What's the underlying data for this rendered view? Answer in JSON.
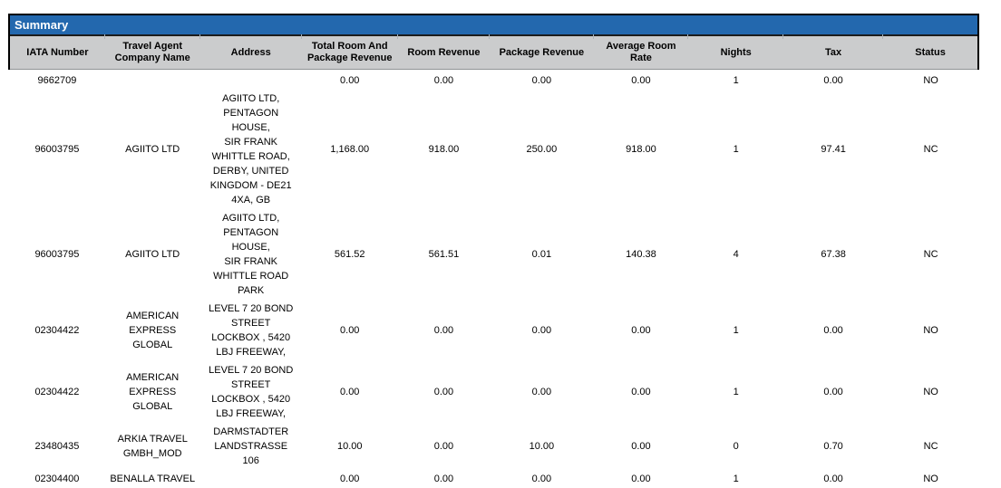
{
  "title_bar": {
    "label": "Summary"
  },
  "colors": {
    "title_bar_bg": "#2368AE",
    "title_text": "#FFFFFF",
    "header_bg": "#CBCCCD",
    "row_bg": "#FFFFFF",
    "text": "#000000",
    "table_border": "#000000"
  },
  "table": {
    "columns": [
      {
        "key": "iata",
        "label": "IATA Number"
      },
      {
        "key": "company",
        "label": "Travel Agent Company Name"
      },
      {
        "key": "address",
        "label": "Address"
      },
      {
        "key": "total",
        "label": "Total Room And Package Revenue"
      },
      {
        "key": "room",
        "label": "Room Revenue"
      },
      {
        "key": "package",
        "label": "Package Revenue"
      },
      {
        "key": "avg_rate",
        "label": "Average Room Rate"
      },
      {
        "key": "nights",
        "label": "Nights"
      },
      {
        "key": "tax",
        "label": "Tax"
      },
      {
        "key": "status",
        "label": "Status"
      }
    ],
    "rows": [
      {
        "iata": "9662709",
        "company": "",
        "address": "",
        "total": "0.00",
        "room": "0.00",
        "package": "0.00",
        "avg_rate": "0.00",
        "nights": "1",
        "tax": "0.00",
        "status": "NO"
      },
      {
        "iata": "96003795",
        "company": "AGIITO LTD",
        "address": "AGIITO LTD,\nPENTAGON\nHOUSE,\nSIR FRANK\nWHITTLE ROAD,\nDERBY, UNITED\nKINGDOM - DE21\n4XA, GB",
        "total": "1,168.00",
        "room": "918.00",
        "package": "250.00",
        "avg_rate": "918.00",
        "nights": "1",
        "tax": "97.41",
        "status": "NC"
      },
      {
        "iata": "96003795",
        "company": "AGIITO LTD",
        "address": "AGIITO LTD,\nPENTAGON\nHOUSE,\nSIR FRANK\nWHITTLE ROAD\nPARK",
        "total": "561.52",
        "room": "561.51",
        "package": "0.01",
        "avg_rate": "140.38",
        "nights": "4",
        "tax": "67.38",
        "status": "NC"
      },
      {
        "iata": "02304422",
        "company": "AMERICAN EXPRESS GLOBAL",
        "address": "LEVEL 7 20 BOND\nSTREET\nLOCKBOX , 5420\nLBJ FREEWAY,",
        "total": "0.00",
        "room": "0.00",
        "package": "0.00",
        "avg_rate": "0.00",
        "nights": "1",
        "tax": "0.00",
        "status": "NO"
      },
      {
        "iata": "02304422",
        "company": "AMERICAN EXPRESS GLOBAL",
        "address": "LEVEL 7 20 BOND\nSTREET\nLOCKBOX , 5420\nLBJ FREEWAY,",
        "total": "0.00",
        "room": "0.00",
        "package": "0.00",
        "avg_rate": "0.00",
        "nights": "1",
        "tax": "0.00",
        "status": "NO"
      },
      {
        "iata": "23480435",
        "company": "ARKIA TRAVEL GMBH_MOD",
        "address": "DARMSTADTER\nLANDSTRASSE\n106",
        "total": "10.00",
        "room": "0.00",
        "package": "10.00",
        "avg_rate": "0.00",
        "nights": "0",
        "tax": "0.70",
        "status": "NC"
      },
      {
        "iata": "02304400",
        "company": "BENALLA TRAVEL",
        "address": "",
        "total": "0.00",
        "room": "0.00",
        "package": "0.00",
        "avg_rate": "0.00",
        "nights": "1",
        "tax": "0.00",
        "status": "NO"
      }
    ]
  }
}
